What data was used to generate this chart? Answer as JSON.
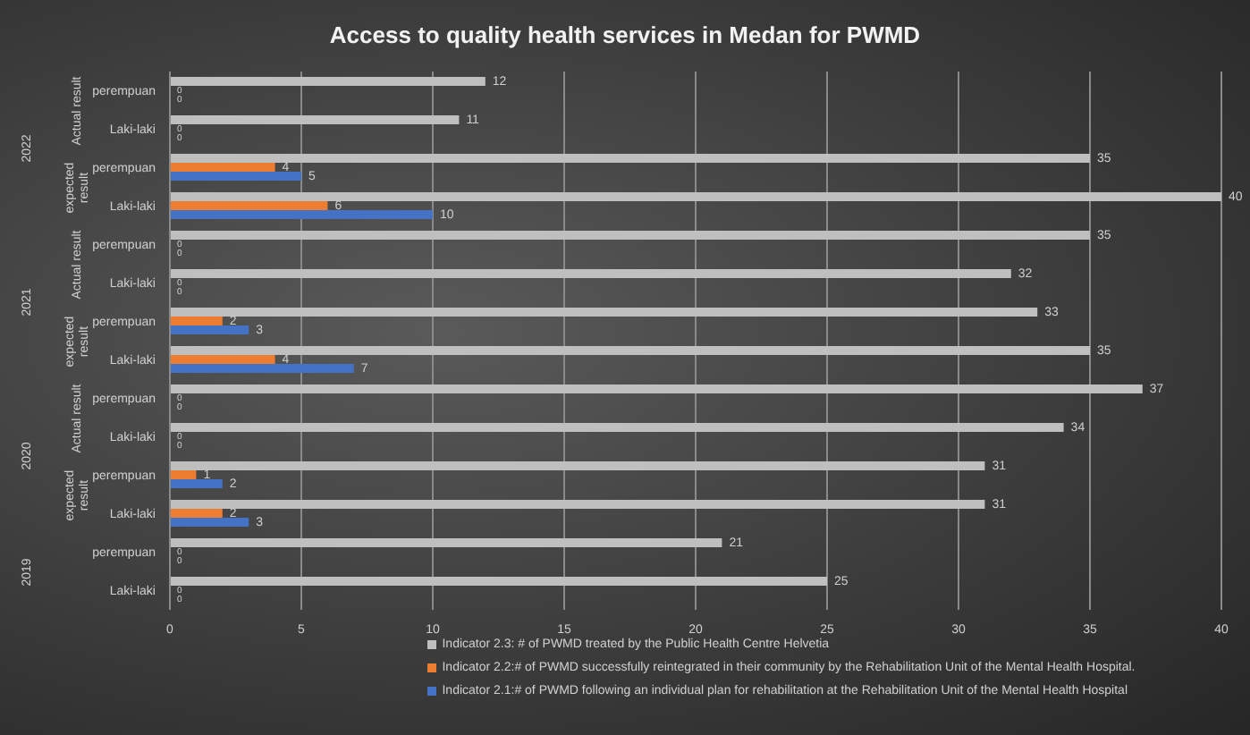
{
  "chart_data": {
    "type": "bar",
    "orientation": "horizontal",
    "title": "Access to quality health services in Medan for PWMD",
    "categories": [
      "perempuan",
      "Laki-laki",
      "perempuan",
      "Laki-laki",
      "perempuan",
      "Laki-laki",
      "perempuan",
      "Laki-laki",
      "perempuan",
      "Laki-laki",
      "perempuan",
      "Laki-laki",
      "perempuan",
      "Laki-laki"
    ],
    "series": [
      {
        "name": "Indicator 2.3: # of PWMD treated by the Public Health Centre Helvetia",
        "color": "#bfbfbf",
        "values": [
          12,
          11,
          35,
          40,
          35,
          32,
          33,
          35,
          37,
          34,
          31,
          31,
          21,
          25
        ]
      },
      {
        "name": "Indicator 2.2:# of PWMD successfully reintegrated in their community by the Rehabilitation Unit of the Mental Health Hospital.",
        "color": "#ed7d31",
        "values": [
          0,
          0,
          4,
          6,
          0,
          0,
          2,
          4,
          0,
          0,
          1,
          2,
          0,
          0
        ]
      },
      {
        "name": "Indicator 2.1:# of PWMD following an individual plan for rehabilitation at the Rehabilitation Unit of the Mental Health Hospital",
        "color": "#4472c4",
        "values": [
          0,
          0,
          5,
          10,
          0,
          0,
          3,
          7,
          0,
          0,
          2,
          3,
          0,
          0
        ]
      }
    ],
    "annotations": [
      "Actual result",
      "expected result",
      "Actual result",
      "expected result",
      "Actual result",
      "expected result",
      "2022",
      "2021",
      "2020",
      "2019"
    ],
    "xlim": [
      0,
      40
    ],
    "xticks": [
      0,
      5,
      10,
      15,
      20,
      25,
      30,
      35,
      40
    ],
    "grid": "x",
    "legend": "bottom",
    "data_labels": true
  }
}
